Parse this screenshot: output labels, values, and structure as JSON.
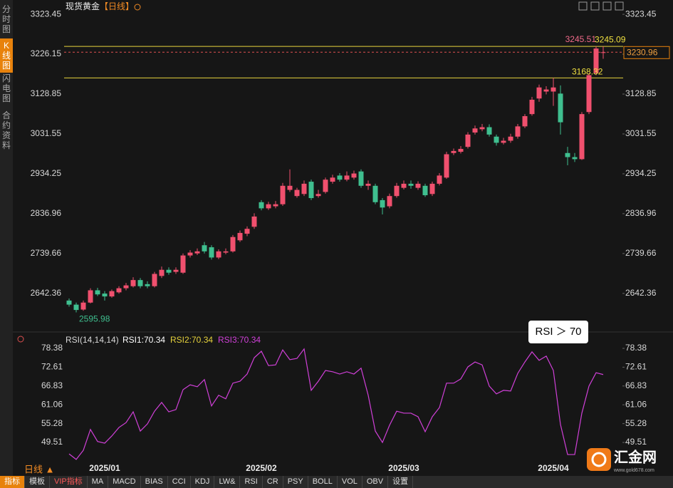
{
  "sidebar": [
    "分时图",
    "K线图",
    "闪电图",
    "合约资料"
  ],
  "active_tab": 1,
  "period_button": "日线 ▲",
  "toolbar": [
    "指标",
    "模板",
    "VIP指标",
    "MA",
    "MACD",
    "BIAS",
    "CCI",
    "KDJ",
    "LW&",
    "RSI",
    "CR",
    "PSY",
    "BOLL",
    "VOL",
    "OBV",
    "设置"
  ],
  "logo": {
    "name": "汇金网",
    "url": "www.gold678.com"
  },
  "callout": "RSI ＞ 70",
  "chart_data": [
    {
      "type": "candlestick",
      "title": "现货黄金",
      "subtitle": "【日线】",
      "up_color": "#f0506e",
      "down_color": "#3fbf8f",
      "categories": [
        null,
        null,
        null,
        null,
        null,
        "2025/01",
        null,
        null,
        null,
        null,
        null,
        null,
        null,
        null,
        null,
        null,
        null,
        null,
        null,
        null,
        null,
        null,
        null,
        null,
        null,
        null,
        null,
        "2025/02",
        null,
        null,
        null,
        null,
        null,
        null,
        null,
        null,
        null,
        null,
        null,
        null,
        null,
        null,
        null,
        null,
        null,
        null,
        null,
        "2025/03",
        null,
        null,
        null,
        null,
        null,
        null,
        null,
        null,
        null,
        null,
        null,
        null,
        null,
        null,
        null,
        null,
        null,
        null,
        null,
        null,
        "2025/04",
        null,
        null,
        null,
        null,
        null,
        null,
        null
      ],
      "open": [
        2625,
        2615,
        2603,
        2620,
        2650,
        2642,
        2635,
        2645,
        2655,
        2660,
        2675,
        2665,
        2660,
        2685,
        2700,
        2695,
        2693,
        2735,
        2740,
        2760,
        2755,
        2730,
        2742,
        2745,
        2772,
        2788,
        2805,
        2865,
        2850,
        2855,
        2860,
        2895,
        2880,
        2885,
        2915,
        2880,
        2890,
        2915,
        2930,
        2920,
        2925,
        2940,
        2905,
        2905,
        2870,
        2855,
        2880,
        2900,
        2910,
        2900,
        2905,
        2885,
        2910,
        2925,
        2985,
        2988,
        3000,
        3035,
        3043,
        3048,
        3025,
        3010,
        3015,
        3025,
        3050,
        3080,
        3118,
        3135,
        3135,
        3130,
        2985,
        2975,
        2970,
        3085,
        3180,
        3230
      ],
      "high": [
        2630,
        2620,
        2625,
        2655,
        2656,
        2648,
        2652,
        2660,
        2668,
        2682,
        2680,
        2672,
        2695,
        2708,
        2706,
        2706,
        2740,
        2748,
        2752,
        2768,
        2760,
        2750,
        2752,
        2785,
        2796,
        2806,
        2838,
        2870,
        2866,
        2868,
        2912,
        2945,
        2900,
        2918,
        2920,
        2895,
        2925,
        2932,
        2936,
        2940,
        2942,
        2945,
        2918,
        2910,
        2875,
        2886,
        2912,
        2918,
        2918,
        2916,
        2910,
        2915,
        2936,
        2988,
        2996,
        3002,
        3036,
        3052,
        3056,
        3055,
        3030,
        3022,
        3032,
        3056,
        3080,
        3122,
        3152,
        3148,
        3168.32,
        3150,
        3000,
        2985,
        3085,
        3180,
        3245.51,
        3245.09
      ],
      "low": [
        2610,
        2595.98,
        2600,
        2618,
        2636,
        2625,
        2632,
        2642,
        2650,
        2657,
        2655,
        2655,
        2657,
        2680,
        2688,
        2690,
        2690,
        2730,
        2736,
        2740,
        2725,
        2726,
        2738,
        2742,
        2768,
        2782,
        2800,
        2845,
        2846,
        2850,
        2856,
        2890,
        2876,
        2880,
        2870,
        2876,
        2886,
        2910,
        2915,
        2916,
        2920,
        2900,
        2895,
        2860,
        2835,
        2850,
        2876,
        2896,
        2898,
        2895,
        2878,
        2880,
        2906,
        2922,
        2980,
        2984,
        2996,
        3030,
        3038,
        3025,
        3003,
        3006,
        3010,
        3020,
        3046,
        3076,
        3110,
        3128,
        3100,
        3030,
        2955,
        2963,
        2968,
        3080,
        3175,
        3215
      ],
      "close": [
        2615,
        2602,
        2620,
        2650,
        2640,
        2635,
        2648,
        2655,
        2662,
        2675,
        2660,
        2660,
        2690,
        2700,
        2693,
        2700,
        2735,
        2742,
        2745,
        2745,
        2730,
        2745,
        2745,
        2780,
        2790,
        2800,
        2830,
        2850,
        2860,
        2860,
        2905,
        2905,
        2895,
        2910,
        2875,
        2885,
        2920,
        2925,
        2920,
        2930,
        2935,
        2905,
        2910,
        2865,
        2852,
        2880,
        2905,
        2910,
        2905,
        2910,
        2882,
        2910,
        2930,
        2982,
        2990,
        2995,
        3030,
        3045,
        3048,
        3030,
        3010,
        3015,
        3025,
        3050,
        3075,
        3115,
        3145,
        3140,
        3145,
        3060,
        2975,
        2970,
        3080,
        3175,
        3240,
        3230.96
      ],
      "ylim": [
        2550,
        3341
      ],
      "yticks": [
        2642.36,
        2739.66,
        2836.96,
        2934.25,
        3031.55,
        3128.85,
        3226.15,
        3323.45
      ]
    },
    {
      "type": "line",
      "title": "RSI(14,14,14)",
      "legend_items": [
        {
          "name": "RSI1:70.34",
          "color": "#ffffff"
        },
        {
          "name": "RSI2:70.34",
          "color": "#e6d23c"
        }
      ],
      "series": [
        {
          "name": "RSI3:70.34",
          "color": "#d040d8",
          "values": [
            46.0,
            44.3,
            47.1,
            53.5,
            49.8,
            49.3,
            51.5,
            54.1,
            55.6,
            58.9,
            53.0,
            55.2,
            59.1,
            61.8,
            58.9,
            59.6,
            65.7,
            67.2,
            66.6,
            68.8,
            60.7,
            64.0,
            62.9,
            67.7,
            68.3,
            70.5,
            75.5,
            77.5,
            73.1,
            73.3,
            77.9,
            74.9,
            75.3,
            78.2,
            65.5,
            68.3,
            71.6,
            71.2,
            70.5,
            71.2,
            70.5,
            72.3,
            64.0,
            53.0,
            49.5,
            54.8,
            59.1,
            58.5,
            58.5,
            57.4,
            52.8,
            57.4,
            60.2,
            67.7,
            67.7,
            69.0,
            72.7,
            74.2,
            73.3,
            66.8,
            64.4,
            65.5,
            65.3,
            70.7,
            74.2,
            77.3,
            74.7,
            76.0,
            71.6,
            55.0,
            45.8,
            45.8,
            58.5,
            66.8,
            70.9,
            70.34
          ]
        }
      ],
      "ylim": [
        44.28,
        80.34
      ],
      "yticks": [
        49.51,
        55.28,
        61.06,
        66.83,
        72.61,
        78.38
      ]
    }
  ]
}
